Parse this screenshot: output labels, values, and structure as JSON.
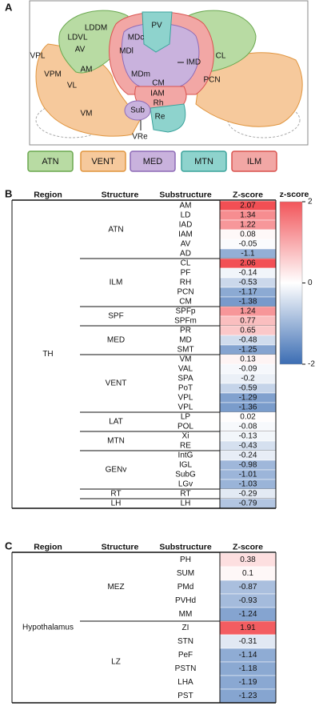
{
  "panel_a": {
    "label": "A",
    "regions": [
      "LDDM",
      "LDVL",
      "AV",
      "VPL",
      "VPM",
      "AM",
      "VL",
      "VM",
      "MDc",
      "PV",
      "MDl",
      "IMD",
      "MDm",
      "CL",
      "PCN",
      "CM",
      "IAM",
      "Rh",
      "Sub",
      "Re",
      "VRe"
    ],
    "legend": [
      {
        "label": "ATN",
        "fill": "#b8dba3",
        "stroke": "#6aa84f"
      },
      {
        "label": "VENT",
        "fill": "#f6c99c",
        "stroke": "#e0953f"
      },
      {
        "label": "MED",
        "fill": "#c9b2dd",
        "stroke": "#8e6bb7"
      },
      {
        "label": "MTN",
        "fill": "#8ed3cd",
        "stroke": "#3ba39c"
      },
      {
        "label": "ILM",
        "fill": "#f2a7a5",
        "stroke": "#d9534f"
      }
    ]
  },
  "panel_b": {
    "label": "B",
    "headers": [
      "Region",
      "Structure",
      "Substructure",
      "Z-score"
    ],
    "region": "TH",
    "groups": [
      {
        "structure": "ATN",
        "rows": [
          {
            "sub": "AM",
            "z": 2.07
          },
          {
            "sub": "LD",
            "z": 1.34
          },
          {
            "sub": "IAD",
            "z": 1.22
          },
          {
            "sub": "IAM",
            "z": 0.08
          },
          {
            "sub": "AV",
            "z": -0.05
          },
          {
            "sub": "AD",
            "z": -1.1
          }
        ]
      },
      {
        "structure": "ILM",
        "rows": [
          {
            "sub": "CL",
            "z": 2.06
          },
          {
            "sub": "PF",
            "z": -0.14
          },
          {
            "sub": "RH",
            "z": -0.53
          },
          {
            "sub": "PCN",
            "z": -1.17
          },
          {
            "sub": "CM",
            "z": -1.38
          }
        ]
      },
      {
        "structure": "SPF",
        "rows": [
          {
            "sub": "SPFp",
            "z": 1.24
          },
          {
            "sub": "SPFm",
            "z": 0.77
          }
        ]
      },
      {
        "structure": "MED",
        "rows": [
          {
            "sub": "PR",
            "z": 0.65
          },
          {
            "sub": "MD",
            "z": -0.48
          },
          {
            "sub": "SMT",
            "z": -1.25
          }
        ]
      },
      {
        "structure": "VENT",
        "rows": [
          {
            "sub": "VM",
            "z": 0.13
          },
          {
            "sub": "VAL",
            "z": -0.09
          },
          {
            "sub": "SPA",
            "z": -0.2
          },
          {
            "sub": "PoT",
            "z": -0.59
          },
          {
            "sub": "VPL",
            "z": -1.29
          },
          {
            "sub": "VPL",
            "z": -1.36
          }
        ]
      },
      {
        "structure": "LAT",
        "rows": [
          {
            "sub": "LP",
            "z": 0.02
          },
          {
            "sub": "POL",
            "z": -0.08
          }
        ]
      },
      {
        "structure": "MTN",
        "rows": [
          {
            "sub": "Xi",
            "z": -0.13
          },
          {
            "sub": "RE",
            "z": -0.43
          }
        ]
      },
      {
        "structure": "GENv",
        "rows": [
          {
            "sub": "IntG",
            "z": -0.24
          },
          {
            "sub": "IGL",
            "z": -0.98
          },
          {
            "sub": "SubG",
            "z": -1.01
          },
          {
            "sub": "LGv",
            "z": -1.03
          }
        ]
      },
      {
        "structure": "RT",
        "rows": [
          {
            "sub": "RT",
            "z": -0.29
          }
        ]
      },
      {
        "structure": "LH",
        "rows": [
          {
            "sub": "LH",
            "z": -0.79
          }
        ]
      }
    ],
    "colorbar": {
      "title": "z-score",
      "lim": [
        -2,
        2
      ],
      "ticks": [
        2,
        0,
        -2
      ],
      "low": "#3b6db3",
      "mid": "#ffffff",
      "high": "#f2555a"
    }
  },
  "panel_c": {
    "label": "C",
    "headers": [
      "Region",
      "Structure",
      "Substructure",
      "Z-score"
    ],
    "region": "Hypothalamus",
    "groups": [
      {
        "structure": "MEZ",
        "rows": [
          {
            "sub": "PH",
            "z": 0.38
          },
          {
            "sub": "SUM",
            "z": 0.1
          },
          {
            "sub": "PMd",
            "z": -0.87
          },
          {
            "sub": "PVHd",
            "z": -0.93
          },
          {
            "sub": "MM",
            "z": -1.24
          }
        ]
      },
      {
        "structure": "LZ",
        "rows": [
          {
            "sub": "ZI",
            "z": 1.91
          },
          {
            "sub": "STN",
            "z": -0.31
          },
          {
            "sub": "PeF",
            "z": -1.14
          },
          {
            "sub": "PSTN",
            "z": -1.18
          },
          {
            "sub": "LHA",
            "z": -1.19
          },
          {
            "sub": "PST",
            "z": -1.23
          }
        ]
      }
    ]
  }
}
